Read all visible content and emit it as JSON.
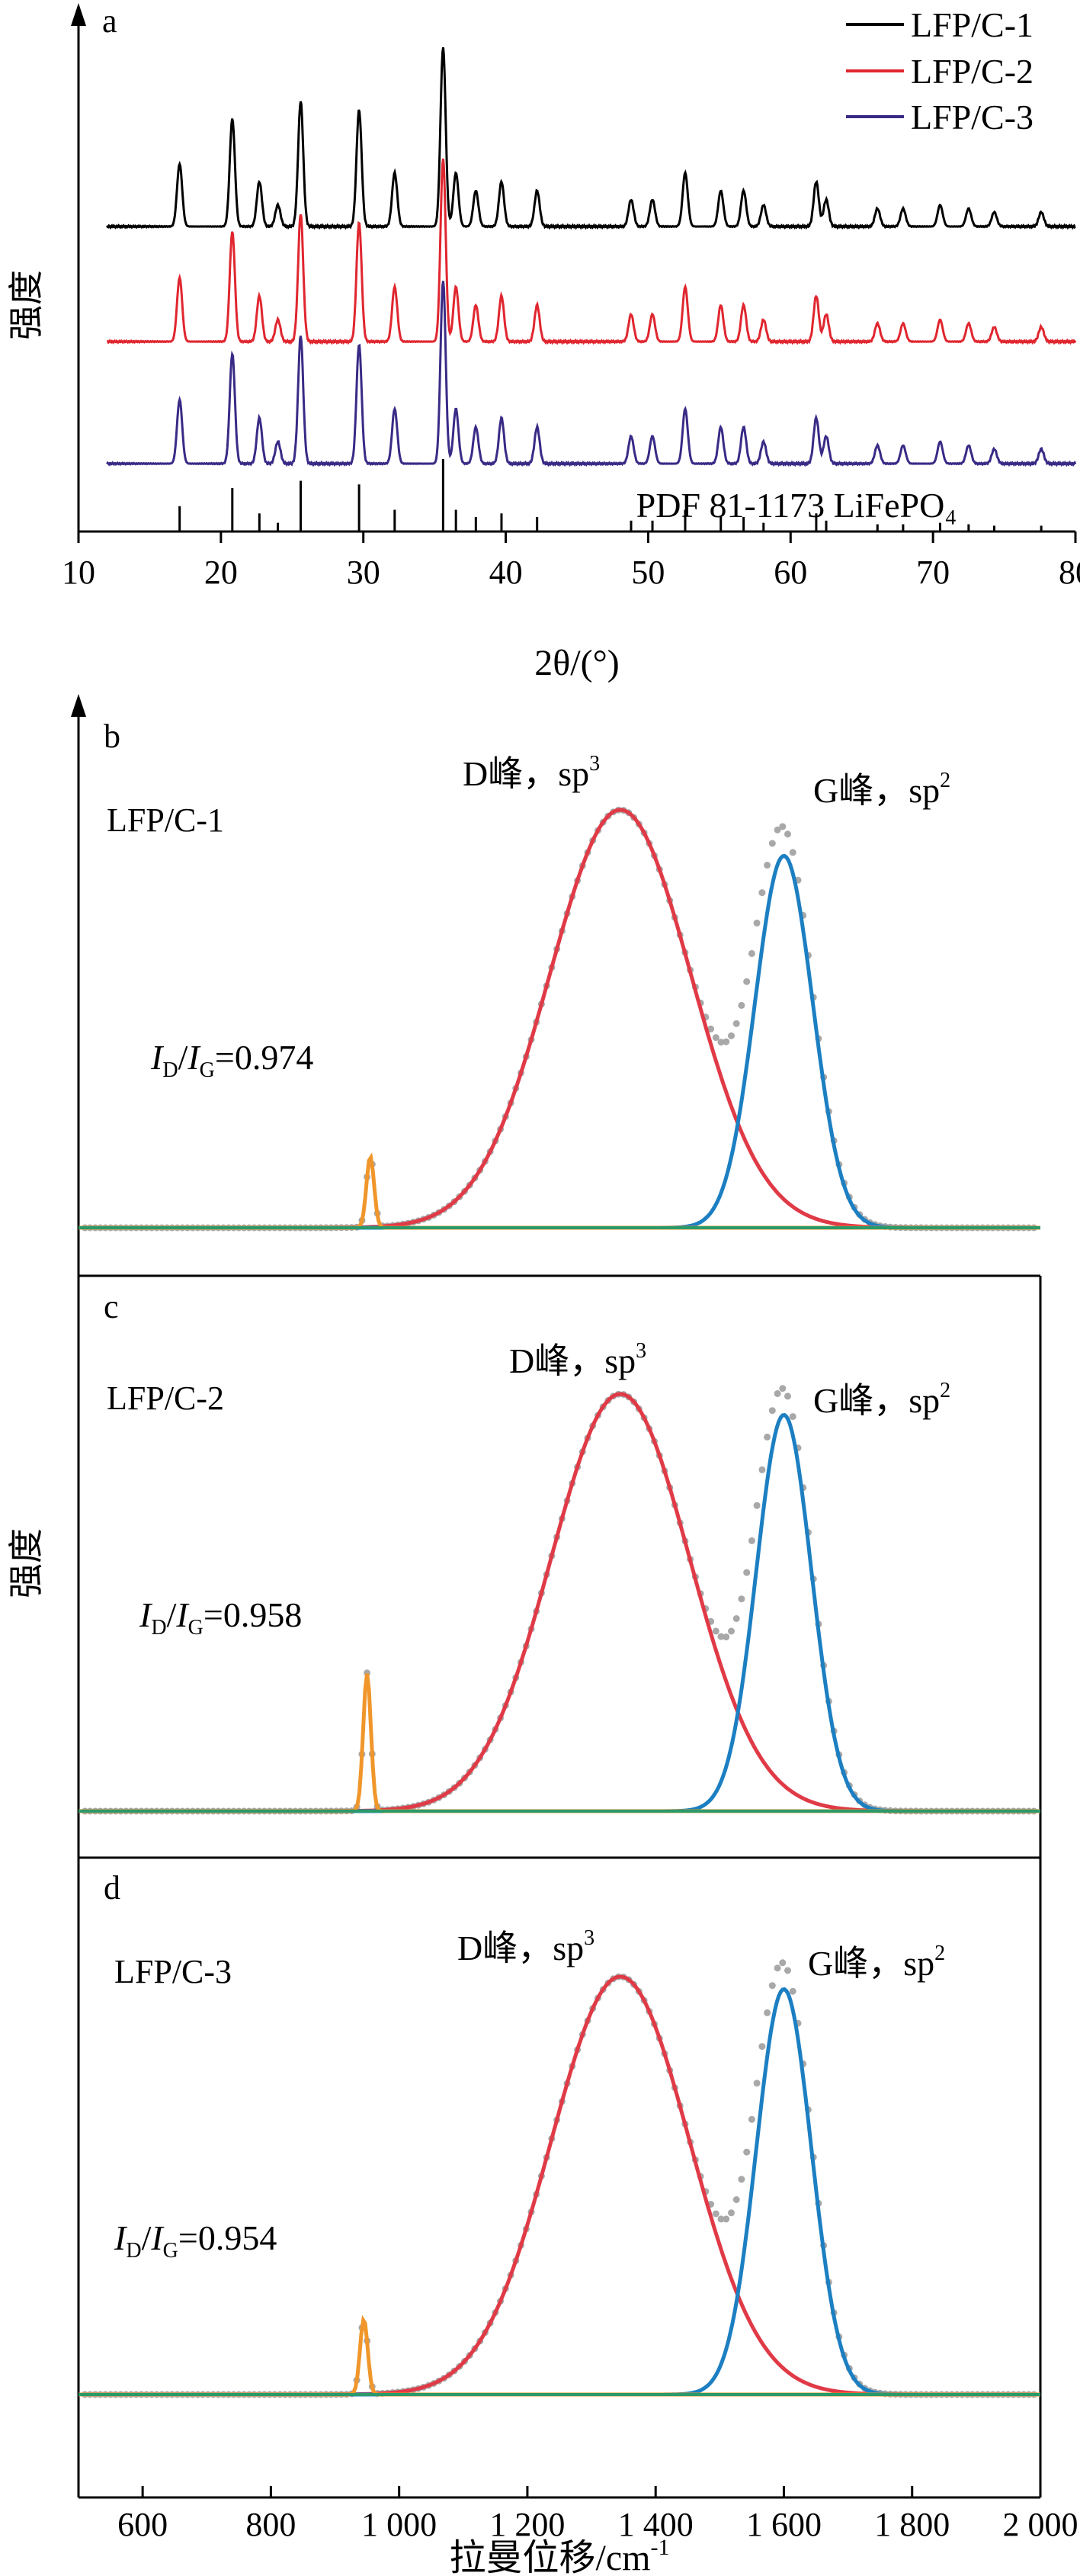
{
  "chart_data": [
    {
      "panel": "a",
      "type": "line",
      "ylabel": "强度",
      "xlabel": "2θ/(°)",
      "xlim": [
        10,
        80
      ],
      "x_ticks": [
        "10",
        "20",
        "30",
        "40",
        "50",
        "60",
        "70",
        "80"
      ],
      "legend_position": "top-right",
      "grid": false,
      "series": [
        {
          "name": "LFP/C-1",
          "color": "#000000"
        },
        {
          "name": "LFP/C-2",
          "color": "#e0262f"
        },
        {
          "name": "LFP/C-3",
          "color": "#3a2a86"
        }
      ],
      "reference": {
        "label": "PDF 81-1173 LiFePO₄",
        "color": "#000000",
        "peaks_2theta": [
          17.1,
          20.8,
          22.7,
          24.0,
          25.6,
          29.7,
          32.2,
          35.6,
          36.5,
          37.9,
          39.7,
          42.2,
          48.8,
          50.3,
          52.6,
          55.1,
          56.7,
          58.1,
          61.8,
          62.5,
          66.1,
          67.9,
          70.5,
          72.5,
          74.3,
          77.6
        ],
        "peak_heights": [
          0.35,
          0.6,
          0.25,
          0.12,
          0.7,
          0.65,
          0.3,
          1.0,
          0.3,
          0.2,
          0.25,
          0.2,
          0.15,
          0.15,
          0.3,
          0.2,
          0.2,
          0.12,
          0.25,
          0.15,
          0.1,
          0.1,
          0.12,
          0.1,
          0.08,
          0.08
        ]
      }
    },
    {
      "panel": "b",
      "type": "line",
      "sample": "LFP/C-1",
      "ratio_label": "=0.974",
      "d_peak_label": "D峰，sp",
      "g_peak_label": "G峰，sp",
      "d_center": 1345,
      "d_width": 110,
      "d_height": 1.0,
      "g_center": 1600,
      "g_width": 45,
      "g_height": 0.89,
      "small_peak_center": 955,
      "small_peak_height": 0.17
    },
    {
      "panel": "c",
      "type": "line",
      "sample": "LFP/C-2",
      "ratio_label": "=0.958",
      "d_peak_label": "D峰，sp",
      "g_peak_label": "G峰，sp",
      "d_center": 1345,
      "d_width": 108,
      "d_height": 1.0,
      "g_center": 1600,
      "g_width": 43,
      "g_height": 0.95,
      "small_peak_center": 950,
      "small_peak_height": 0.33
    },
    {
      "panel": "d",
      "type": "line",
      "sample": "LFP/C-3",
      "ratio_label": "=0.954",
      "d_peak_label": "D峰，sp",
      "g_peak_label": "G峰，sp",
      "d_center": 1345,
      "d_width": 108,
      "d_height": 1.0,
      "g_center": 1600,
      "g_width": 43,
      "g_height": 0.97,
      "small_peak_center": 945,
      "small_peak_height": 0.18
    }
  ],
  "raman_axis": {
    "xlabel": "拉曼位移/cm",
    "xlabel_sup": "-1",
    "ylabel": "强度",
    "xlim": [
      500,
      2000
    ],
    "x_ticks": [
      {
        "value": 600,
        "label": "600"
      },
      {
        "value": 800,
        "label": "800"
      },
      {
        "value": 1000,
        "label": "1 000"
      },
      {
        "value": 1200,
        "label": "1 200"
      },
      {
        "value": 1400,
        "label": "1 400"
      },
      {
        "value": 1600,
        "label": "1 600"
      },
      {
        "value": 1800,
        "label": "1 800"
      },
      {
        "value": 2000,
        "label": "2 000"
      }
    ]
  },
  "labels": {
    "ratio_i": "I",
    "ratio_d_sub": "D",
    "ratio_slash": "/",
    "ratio_g_sub": "G",
    "sp3": "3",
    "sp2": "2"
  },
  "colors": {
    "d_fit": "#e03a47",
    "g_fit": "#1c7fc2",
    "small_peak": "#f0962a",
    "baseline": "#2a9a6a",
    "raw_points": "#a8a8a8"
  }
}
